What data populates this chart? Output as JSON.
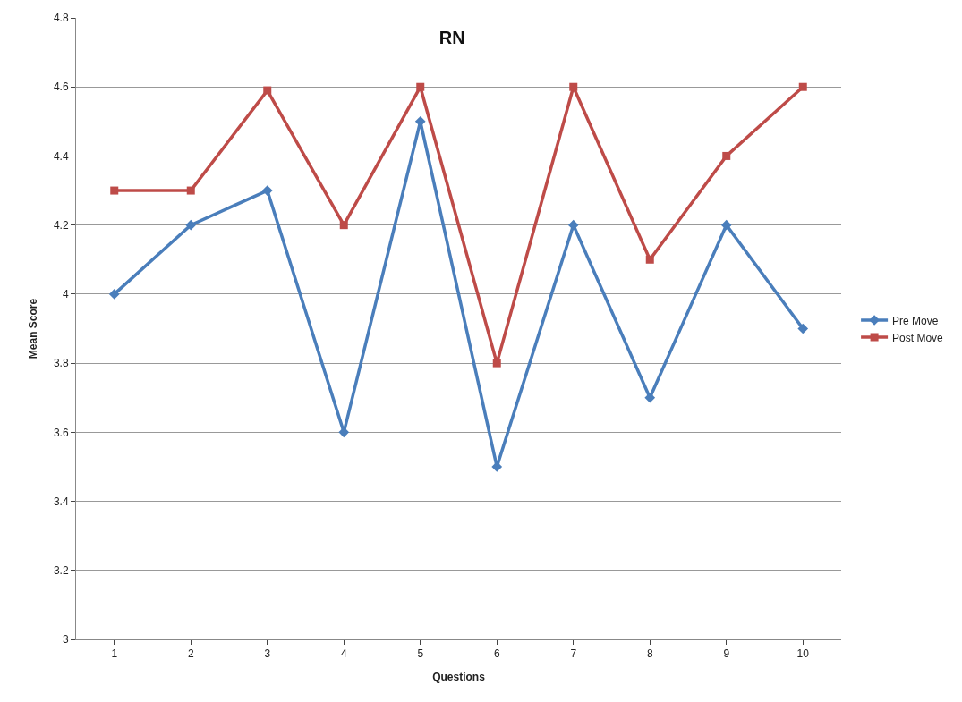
{
  "chart_data": {
    "type": "line",
    "title": "RN",
    "xlabel": "Questions",
    "ylabel": "Mean Score",
    "categories": [
      "1",
      "2",
      "3",
      "4",
      "5",
      "6",
      "7",
      "8",
      "9",
      "10"
    ],
    "series": [
      {
        "name": "Pre Move",
        "color": "#4a7ebb",
        "marker": "diamond",
        "values": [
          4.0,
          4.2,
          4.3,
          3.6,
          4.5,
          3.5,
          4.2,
          3.7,
          4.2,
          3.9
        ]
      },
      {
        "name": "Post Move",
        "color": "#be4b48",
        "marker": "square",
        "values": [
          4.3,
          4.3,
          4.59,
          4.2,
          4.6,
          3.8,
          4.6,
          4.1,
          4.4,
          4.6
        ]
      }
    ],
    "ylim": [
      3,
      4.8
    ],
    "yticks": [
      3,
      3.2,
      3.4,
      3.6,
      3.8,
      4,
      4.2,
      4.4,
      4.6,
      4.8
    ],
    "grid": "y",
    "legend": "right",
    "line_style": "solid"
  }
}
